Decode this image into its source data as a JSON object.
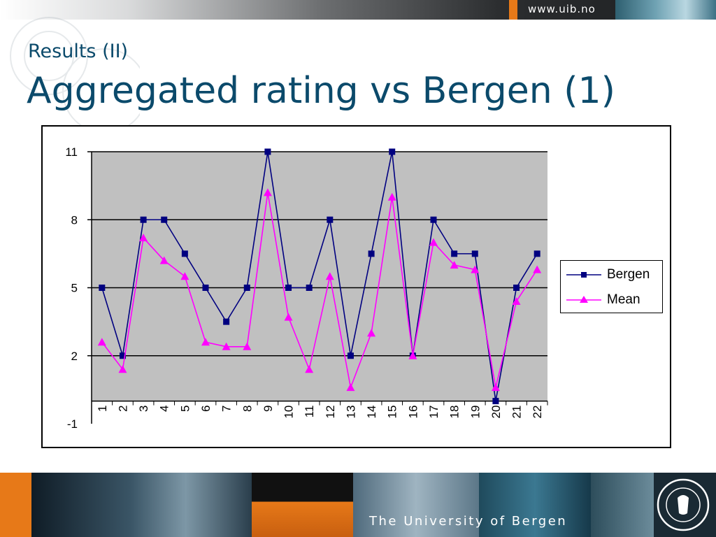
{
  "header": {
    "url": "www.uib.no"
  },
  "slide": {
    "subtitle": "Results (II)",
    "title": "Aggregated rating vs Bergen (1)"
  },
  "footer": {
    "text": "The University of Bergen"
  },
  "colors": {
    "title": "#0b4a6b",
    "plot_bg": "#c0c0c0",
    "bergen": "#000080",
    "mean": "#ff00ff",
    "accent_orange": "#e77918"
  },
  "chart_data": {
    "type": "line",
    "title": "",
    "xlabel": "",
    "ylabel": "",
    "categories": [
      "1",
      "2",
      "3",
      "4",
      "5",
      "6",
      "7",
      "8",
      "9",
      "10",
      "11",
      "12",
      "13",
      "14",
      "15",
      "16",
      "17",
      "18",
      "19",
      "20",
      "21",
      "22"
    ],
    "ylim": [
      -1,
      11
    ],
    "yticks": [
      "11",
      "8",
      "5",
      "2",
      "-1"
    ],
    "ytick_values": [
      11,
      8,
      5,
      2,
      -1
    ],
    "grid": true,
    "legend_position": "right",
    "series": [
      {
        "name": "Bergen",
        "marker": "square",
        "values": [
          5,
          2,
          8,
          8,
          6.5,
          5,
          3.5,
          5,
          11,
          5,
          5,
          8,
          2,
          6.5,
          11,
          2,
          8,
          6.5,
          6.5,
          0,
          5,
          6.5
        ]
      },
      {
        "name": "Mean",
        "marker": "triangle",
        "values": [
          2.6,
          1.4,
          7.2,
          6.2,
          5.5,
          2.6,
          2.4,
          2.4,
          9.2,
          3.7,
          1.4,
          5.5,
          0.6,
          3.0,
          9.0,
          2.0,
          7.0,
          6.0,
          5.8,
          0.6,
          4.4,
          5.8
        ]
      }
    ]
  }
}
